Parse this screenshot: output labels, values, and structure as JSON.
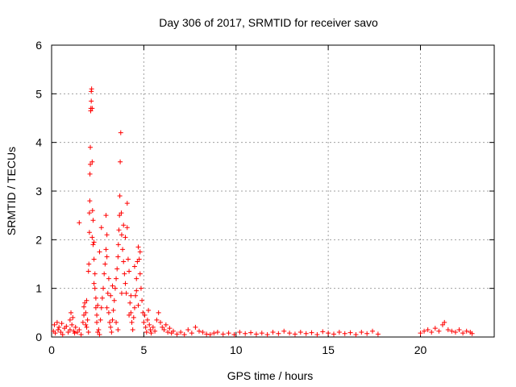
{
  "chart_data": {
    "type": "scatter",
    "title": "Day 306 of 2017, SRMTID for receiver savo",
    "xlabel": "GPS time / hours",
    "ylabel": "SRMTID / TECUs",
    "xlim": [
      0,
      24
    ],
    "ylim": [
      0,
      6
    ],
    "xticks": [
      0,
      5,
      10,
      15,
      20
    ],
    "yticks": [
      0,
      1,
      2,
      3,
      4,
      5,
      6
    ],
    "grid": true,
    "marker": "plus",
    "color": "#ff0000",
    "series": [
      {
        "name": "SRMTID",
        "points": [
          [
            0.1,
            0.12
          ],
          [
            0.15,
            0.25
          ],
          [
            0.2,
            0.08
          ],
          [
            0.3,
            0.3
          ],
          [
            0.35,
            0.15
          ],
          [
            0.4,
            0.2
          ],
          [
            0.5,
            0.1
          ],
          [
            0.55,
            0.28
          ],
          [
            0.6,
            0.05
          ],
          [
            0.7,
            0.18
          ],
          [
            0.8,
            0.22
          ],
          [
            0.9,
            0.1
          ],
          [
            1.0,
            0.35
          ],
          [
            1.0,
            0.15
          ],
          [
            1.05,
            0.5
          ],
          [
            1.1,
            0.25
          ],
          [
            1.15,
            0.4
          ],
          [
            1.2,
            0.12
          ],
          [
            1.25,
            0.08
          ],
          [
            1.3,
            0.2
          ],
          [
            1.4,
            0.1
          ],
          [
            1.5,
            0.15
          ],
          [
            1.6,
            0.05
          ],
          [
            1.7,
            0.3
          ],
          [
            1.75,
            0.62
          ],
          [
            1.8,
            0.7
          ],
          [
            1.85,
            0.5
          ],
          [
            1.9,
            0.2
          ],
          [
            1.95,
            0.35
          ],
          [
            2.0,
            0.1
          ],
          [
            2.0,
            1.35
          ],
          [
            2.02,
            1.5
          ],
          [
            2.05,
            2.15
          ],
          [
            2.05,
            2.55
          ],
          [
            2.07,
            2.8
          ],
          [
            2.08,
            3.35
          ],
          [
            2.1,
            3.55
          ],
          [
            2.1,
            3.9
          ],
          [
            2.12,
            4.65
          ],
          [
            2.13,
            4.7
          ],
          [
            2.15,
            4.85
          ],
          [
            2.15,
            5.05
          ],
          [
            2.17,
            5.1
          ],
          [
            2.2,
            4.7
          ],
          [
            2.2,
            3.6
          ],
          [
            2.22,
            2.6
          ],
          [
            2.25,
            2.4
          ],
          [
            2.25,
            1.9
          ],
          [
            2.3,
            1.95
          ],
          [
            2.3,
            1.6
          ],
          [
            2.35,
            1.3
          ],
          [
            2.35,
            1.0
          ],
          [
            2.4,
            0.8
          ],
          [
            2.4,
            0.6
          ],
          [
            2.45,
            0.45
          ],
          [
            2.45,
            0.3
          ],
          [
            1.5,
            2.35
          ],
          [
            2.5,
            0.1
          ],
          [
            2.55,
            0.15
          ],
          [
            2.6,
            0.05
          ],
          [
            2.65,
            0.35
          ],
          [
            2.7,
            0.6
          ],
          [
            2.75,
            0.8
          ],
          [
            2.8,
            1.0
          ],
          [
            2.85,
            1.3
          ],
          [
            2.9,
            1.5
          ],
          [
            2.95,
            1.8
          ],
          [
            3.0,
            2.1
          ],
          [
            2.95,
            2.5
          ],
          [
            3.0,
            1.65
          ],
          [
            3.05,
            0.9
          ],
          [
            3.1,
            0.5
          ],
          [
            3.15,
            0.3
          ],
          [
            3.2,
            0.2
          ],
          [
            3.25,
            0.1
          ],
          [
            3.3,
            0.35
          ],
          [
            3.35,
            0.55
          ],
          [
            3.4,
            0.75
          ],
          [
            3.45,
            1.0
          ],
          [
            3.5,
            1.2
          ],
          [
            3.55,
            1.4
          ],
          [
            3.6,
            1.65
          ],
          [
            3.62,
            1.9
          ],
          [
            3.65,
            2.2
          ],
          [
            3.68,
            2.5
          ],
          [
            3.7,
            2.9
          ],
          [
            3.72,
            3.6
          ],
          [
            3.75,
            4.2
          ],
          [
            3.78,
            2.55
          ],
          [
            3.8,
            2.1
          ],
          [
            3.85,
            1.8
          ],
          [
            3.9,
            1.55
          ],
          [
            3.95,
            1.3
          ],
          [
            4.0,
            1.1
          ],
          [
            4.05,
            0.9
          ],
          [
            4.1,
            2.25
          ],
          [
            4.1,
            2.75
          ],
          [
            4.15,
            1.6
          ],
          [
            4.2,
            1.35
          ],
          [
            4.25,
            0.7
          ],
          [
            4.3,
            0.5
          ],
          [
            4.35,
            0.3
          ],
          [
            4.4,
            0.15
          ],
          [
            4.45,
            0.4
          ],
          [
            4.5,
            0.6
          ],
          [
            4.55,
            0.85
          ],
          [
            4.6,
            1.2
          ],
          [
            4.65,
            1.55
          ],
          [
            4.7,
            1.85
          ],
          [
            4.75,
            1.6
          ],
          [
            4.8,
            1.3
          ],
          [
            4.85,
            1.0
          ],
          [
            4.9,
            0.75
          ],
          [
            4.95,
            0.5
          ],
          [
            5.0,
            0.3
          ],
          [
            5.05,
            0.45
          ],
          [
            5.1,
            0.2
          ],
          [
            5.15,
            0.1
          ],
          [
            5.2,
            0.35
          ],
          [
            5.25,
            0.55
          ],
          [
            5.3,
            0.25
          ],
          [
            5.35,
            0.15
          ],
          [
            5.4,
            0.08
          ],
          [
            5.5,
            0.2
          ],
          [
            5.6,
            0.12
          ],
          [
            5.7,
            0.35
          ],
          [
            5.8,
            0.5
          ],
          [
            5.9,
            0.3
          ],
          [
            6.0,
            0.2
          ],
          [
            6.1,
            0.15
          ],
          [
            6.2,
            0.25
          ],
          [
            6.3,
            0.1
          ],
          [
            6.4,
            0.18
          ],
          [
            6.5,
            0.08
          ],
          [
            6.6,
            0.12
          ],
          [
            6.8,
            0.06
          ],
          [
            7.0,
            0.1
          ],
          [
            7.2,
            0.05
          ],
          [
            7.4,
            0.15
          ],
          [
            7.6,
            0.08
          ],
          [
            7.8,
            0.2
          ],
          [
            8.0,
            0.12
          ],
          [
            8.2,
            0.1
          ],
          [
            8.4,
            0.06
          ],
          [
            8.6,
            0.05
          ],
          [
            8.8,
            0.08
          ],
          [
            9.0,
            0.1
          ],
          [
            9.3,
            0.06
          ],
          [
            9.6,
            0.08
          ],
          [
            9.9,
            0.05
          ],
          [
            10.2,
            0.1
          ],
          [
            10.5,
            0.07
          ],
          [
            10.8,
            0.09
          ],
          [
            11.1,
            0.06
          ],
          [
            11.4,
            0.08
          ],
          [
            11.7,
            0.05
          ],
          [
            12.0,
            0.1
          ],
          [
            12.3,
            0.07
          ],
          [
            12.6,
            0.12
          ],
          [
            12.9,
            0.08
          ],
          [
            13.2,
            0.06
          ],
          [
            13.5,
            0.1
          ],
          [
            13.8,
            0.07
          ],
          [
            14.1,
            0.09
          ],
          [
            14.4,
            0.05
          ],
          [
            14.7,
            0.11
          ],
          [
            15.0,
            0.08
          ],
          [
            15.3,
            0.06
          ],
          [
            15.6,
            0.1
          ],
          [
            15.9,
            0.07
          ],
          [
            16.2,
            0.09
          ],
          [
            16.5,
            0.05
          ],
          [
            16.8,
            0.1
          ],
          [
            17.1,
            0.07
          ],
          [
            17.4,
            0.12
          ],
          [
            17.7,
            0.06
          ],
          [
            20.0,
            0.08
          ],
          [
            20.2,
            0.12
          ],
          [
            20.4,
            0.15
          ],
          [
            20.6,
            0.1
          ],
          [
            20.8,
            0.18
          ],
          [
            21.0,
            0.12
          ],
          [
            21.2,
            0.25
          ],
          [
            21.3,
            0.3
          ],
          [
            21.5,
            0.15
          ],
          [
            21.7,
            0.12
          ],
          [
            21.9,
            0.1
          ],
          [
            22.1,
            0.15
          ],
          [
            22.3,
            0.08
          ],
          [
            22.5,
            0.12
          ],
          [
            22.7,
            0.1
          ],
          [
            22.8,
            0.07
          ],
          [
            3.8,
            0.9
          ],
          [
            3.9,
            2.3
          ],
          [
            4.0,
            2.05
          ],
          [
            2.6,
            1.75
          ],
          [
            2.7,
            2.25
          ],
          [
            4.5,
            1.45
          ],
          [
            4.6,
            0.95
          ],
          [
            4.7,
            0.65
          ],
          [
            2.2,
            2.05
          ],
          [
            2.3,
            1.1
          ],
          [
            3.5,
            0.3
          ],
          [
            3.6,
            0.15
          ],
          [
            4.8,
            1.75
          ],
          [
            1.75,
            0.45
          ],
          [
            1.85,
            0.25
          ],
          [
            2.5,
            0.65
          ],
          [
            3.0,
            0.6
          ],
          [
            3.1,
            1.2
          ],
          [
            4.2,
            0.45
          ],
          [
            4.3,
            0.85
          ],
          [
            1.9,
            0.75
          ],
          [
            3.2,
            0.85
          ],
          [
            3.3,
            1.05
          ]
        ]
      }
    ]
  }
}
